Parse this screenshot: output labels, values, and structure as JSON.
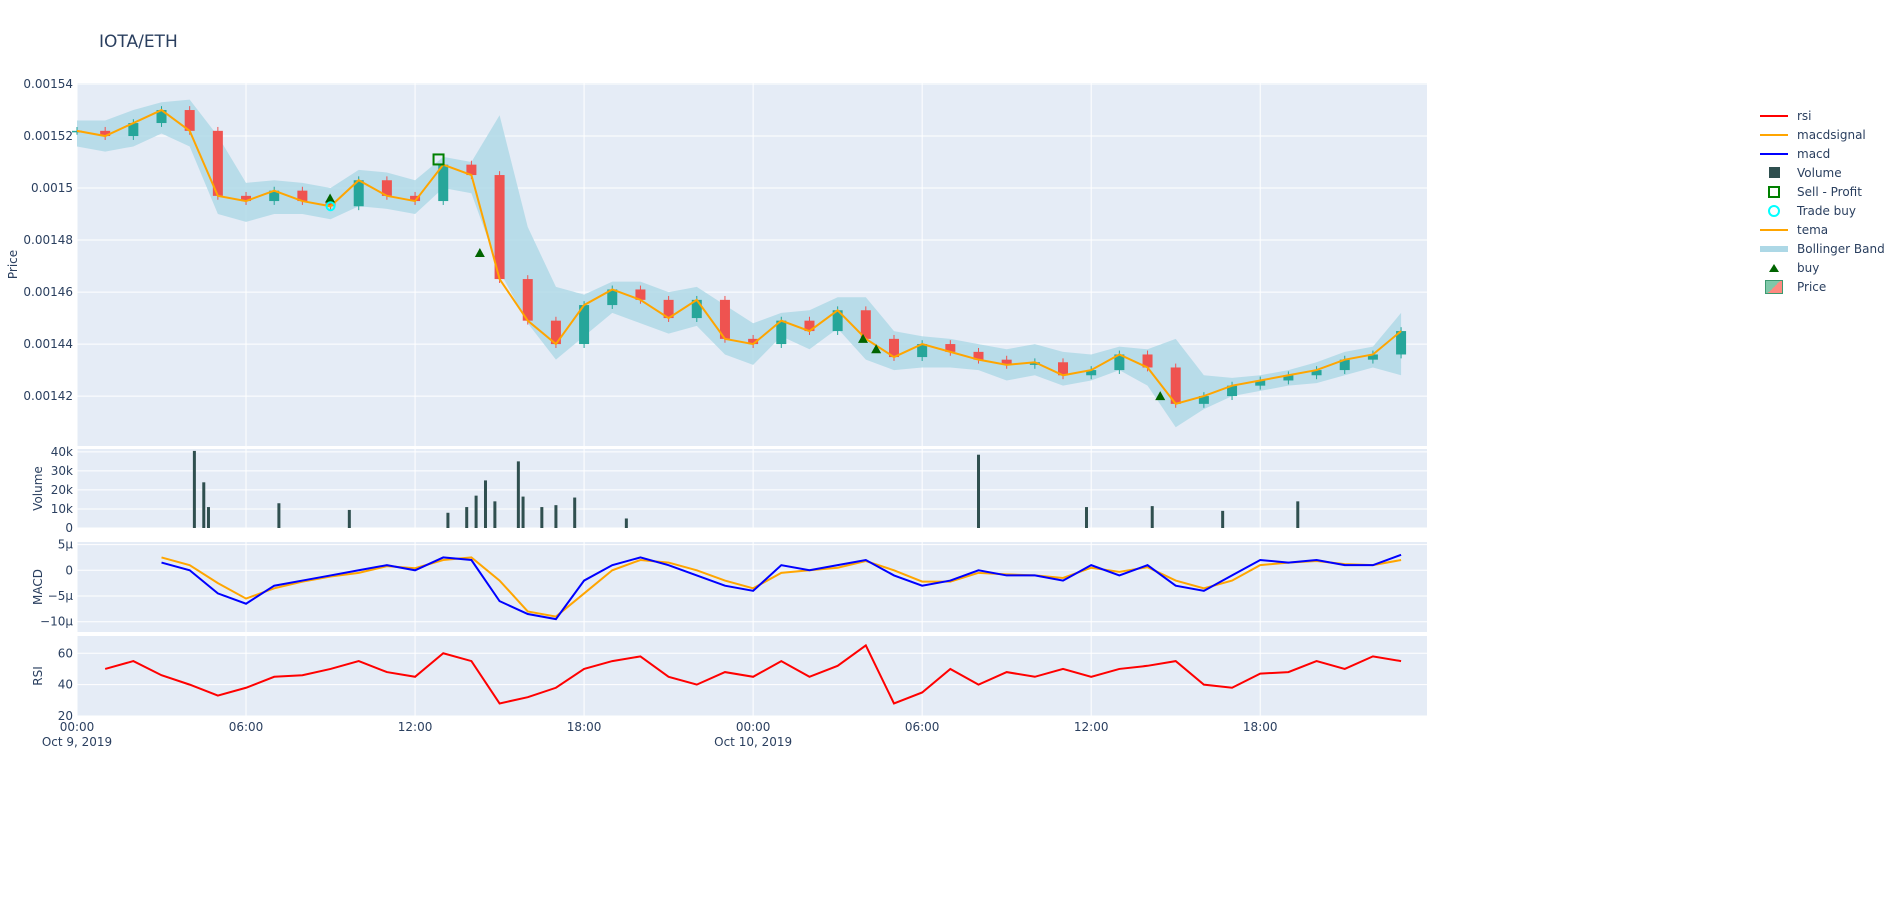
{
  "title": "IOTA/ETH",
  "colors": {
    "rsi": "#ff0000",
    "macdsignal": "#ffa500",
    "macd": "#0000ff",
    "volume": "#2f4f4f",
    "sell": "#008000",
    "tradebuy": "#00ffff",
    "tema": "#ffa500",
    "band": "#add8e6",
    "buy": "#006400",
    "up": "#26a69a",
    "down": "#ef5350",
    "plot_bg": "#e5ecf6"
  },
  "legend": [
    "rsi",
    "macdsignal",
    "macd",
    "Volume",
    "Sell - Profit",
    "Trade buy",
    "tema",
    "Bollinger Band",
    "buy",
    "Price"
  ],
  "chart_data": {
    "type": "candlestick",
    "x_ticks": [
      {
        "t": 0,
        "label": "00:00",
        "sub": "Oct 9, 2019"
      },
      {
        "t": 6,
        "label": "06:00"
      },
      {
        "t": 12,
        "label": "12:00"
      },
      {
        "t": 18,
        "label": "18:00"
      },
      {
        "t": 24,
        "label": "00:00",
        "sub": "Oct 10, 2019"
      },
      {
        "t": 30,
        "label": "06:00"
      },
      {
        "t": 36,
        "label": "12:00"
      },
      {
        "t": 42,
        "label": "18:00"
      }
    ],
    "x_range": [
      "2019-10-09 00:00",
      "2019-10-10 23:55"
    ],
    "time": [
      "2019-10-09 00:00",
      "01:00",
      "02:00",
      "03:00",
      "04:00",
      "05:00",
      "06:00",
      "07:00",
      "08:00",
      "09:00",
      "10:00",
      "11:00",
      "12:00",
      "13:00",
      "14:00",
      "15:00",
      "16:00",
      "17:00",
      "18:00",
      "19:00",
      "20:00",
      "21:00",
      "22:00",
      "23:00",
      "2019-10-10 00:00",
      "01:00",
      "02:00",
      "03:00",
      "04:00",
      "05:00",
      "06:00",
      "07:00",
      "08:00",
      "09:00",
      "10:00",
      "11:00",
      "12:00",
      "13:00",
      "14:00",
      "15:00",
      "16:00",
      "17:00",
      "18:00",
      "19:00",
      "20:00",
      "21:00",
      "22:00",
      "23:00"
    ],
    "price": {
      "ylabel": "Price",
      "ylim": [
        0.0014008,
        0.0015404
      ],
      "ticks": [
        "0.00142",
        "0.00144",
        "0.00146",
        "0.00148",
        "0.0015",
        "0.00152",
        "0.00154"
      ],
      "close": [
        0.001522,
        0.00152,
        0.001525,
        0.00153,
        0.001522,
        0.001497,
        0.001495,
        0.001499,
        0.001495,
        0.001493,
        0.001503,
        0.001497,
        0.001495,
        0.001509,
        0.001505,
        0.001465,
        0.001449,
        0.00144,
        0.001455,
        0.001461,
        0.001457,
        0.00145,
        0.001457,
        0.001442,
        0.00144,
        0.001449,
        0.001445,
        0.001453,
        0.001442,
        0.001435,
        0.00144,
        0.001437,
        0.001434,
        0.001432,
        0.001433,
        0.001428,
        0.00143,
        0.001436,
        0.001431,
        0.001417,
        0.00142,
        0.001424,
        0.001426,
        0.001428,
        0.00143,
        0.001434,
        0.001436,
        0.001445
      ],
      "bb_upper": [
        0.001526,
        0.001526,
        0.00153,
        0.001533,
        0.001534,
        0.00152,
        0.001502,
        0.001503,
        0.001502,
        0.0015,
        0.001507,
        0.001506,
        0.001503,
        0.001512,
        0.00151,
        0.001528,
        0.001485,
        0.001462,
        0.001459,
        0.001464,
        0.001464,
        0.00146,
        0.001462,
        0.001455,
        0.001448,
        0.001452,
        0.001453,
        0.001458,
        0.001458,
        0.001445,
        0.001443,
        0.001442,
        0.00144,
        0.001438,
        0.00144,
        0.001437,
        0.001436,
        0.001439,
        0.001438,
        0.001442,
        0.001428,
        0.001427,
        0.001428,
        0.00143,
        0.001433,
        0.001437,
        0.001439,
        0.001452
      ],
      "bb_lower": [
        0.001516,
        0.001514,
        0.001516,
        0.001521,
        0.001516,
        0.00149,
        0.001487,
        0.00149,
        0.00149,
        0.001488,
        0.001493,
        0.001492,
        0.00149,
        0.0015,
        0.001498,
        0.001468,
        0.001448,
        0.001434,
        0.001443,
        0.001452,
        0.001448,
        0.001444,
        0.001447,
        0.001436,
        0.001432,
        0.001443,
        0.001438,
        0.001446,
        0.001434,
        0.00143,
        0.001431,
        0.001431,
        0.00143,
        0.001426,
        0.001428,
        0.001424,
        0.001426,
        0.00143,
        0.001424,
        0.001408,
        0.001415,
        0.00142,
        0.001422,
        0.001424,
        0.001425,
        0.001428,
        0.001431,
        0.001428
      ],
      "buy": [
        {
          "t": "2019-10-09 08:59",
          "price": 0.001496
        },
        {
          "t": "2019-10-09 14:18",
          "price": 0.001475
        },
        {
          "t": "2019-10-10 03:54",
          "price": 0.001442
        },
        {
          "t": "2019-10-10 04:22",
          "price": 0.001438
        },
        {
          "t": "2019-10-10 14:27",
          "price": 0.00142
        }
      ],
      "trade_buy": [
        {
          "t": "2019-10-09 09:00",
          "price": 0.001493
        }
      ],
      "sell_profit": [
        {
          "t": "2019-10-09 12:50",
          "price": 0.001511
        }
      ]
    },
    "volume": {
      "ylabel": "Volume",
      "ylim": [
        0,
        41500
      ],
      "ticks": [
        "0",
        "10k",
        "20k",
        "30k",
        "40k"
      ],
      "bars": [
        {
          "t": "2019-10-09 04:10",
          "v": 40500
        },
        {
          "t": "2019-10-09 04:30",
          "v": 24000
        },
        {
          "t": "2019-10-09 04:40",
          "v": 11000
        },
        {
          "t": "2019-10-09 07:10",
          "v": 13000
        },
        {
          "t": "2019-10-09 09:40",
          "v": 9500
        },
        {
          "t": "2019-10-09 13:10",
          "v": 8000
        },
        {
          "t": "2019-10-09 13:50",
          "v": 11000
        },
        {
          "t": "2019-10-09 14:10",
          "v": 17000
        },
        {
          "t": "2019-10-09 14:30",
          "v": 25000
        },
        {
          "t": "2019-10-09 14:50",
          "v": 14000
        },
        {
          "t": "2019-10-09 15:40",
          "v": 35000
        },
        {
          "t": "2019-10-09 15:50",
          "v": 16500
        },
        {
          "t": "2019-10-09 16:30",
          "v": 11000
        },
        {
          "t": "2019-10-09 17:00",
          "v": 12000
        },
        {
          "t": "2019-10-09 17:40",
          "v": 16000
        },
        {
          "t": "2019-10-09 19:30",
          "v": 5000
        },
        {
          "t": "2019-10-10 08:00",
          "v": 38500
        },
        {
          "t": "2019-10-10 11:50",
          "v": 11000
        },
        {
          "t": "2019-10-10 14:10",
          "v": 11500
        },
        {
          "t": "2019-10-10 16:40",
          "v": 9000
        },
        {
          "t": "2019-10-10 19:20",
          "v": 14000
        }
      ]
    },
    "macd": {
      "ylabel": "MACD",
      "ylim": [
        -12,
        5.5
      ],
      "ticks": [
        "−10µ",
        "−5µ",
        "0",
        "5µ"
      ],
      "macd": [
        null,
        null,
        null,
        1.5,
        0,
        -4.5,
        -6.5,
        -3,
        -2,
        -1,
        0,
        1,
        0,
        2.5,
        2,
        -6,
        -8.5,
        -9.5,
        -2,
        1,
        2.5,
        1,
        -1,
        -3,
        -4,
        1,
        0,
        1,
        2,
        -1,
        -3,
        -2,
        0,
        -1,
        -1,
        -2,
        1,
        -1,
        1,
        -3,
        -4,
        -1,
        2,
        1.5,
        2,
        1,
        1,
        3
      ],
      "macdsignal": [
        null,
        null,
        null,
        2.5,
        1,
        -2.5,
        -5.5,
        -3.5,
        -2.2,
        -1.2,
        -0.5,
        0.8,
        0.4,
        2,
        2.5,
        -2,
        -8,
        -9,
        -4.5,
        0,
        2,
        1.5,
        0,
        -2,
        -3.5,
        -0.5,
        0,
        0.5,
        1.8,
        0,
        -2.2,
        -2.2,
        -0.5,
        -0.8,
        -1,
        -1.5,
        0.5,
        -0.3,
        0.6,
        -2,
        -3.5,
        -2,
        1,
        1.5,
        1.8,
        1.2,
        1,
        2
      ]
    },
    "rsi": {
      "ylabel": "RSI",
      "ylim": [
        20,
        71
      ],
      "ticks": [
        "20",
        "40",
        "60"
      ],
      "values": [
        null,
        50,
        55,
        46,
        40,
        33,
        38,
        45,
        46,
        50,
        55,
        48,
        45,
        60,
        55,
        28,
        32,
        38,
        50,
        55,
        58,
        45,
        40,
        48,
        45,
        55,
        45,
        52,
        65,
        28,
        35,
        50,
        40,
        48,
        45,
        50,
        45,
        50,
        52,
        55,
        40,
        38,
        47,
        48,
        55,
        50,
        58,
        55
      ]
    }
  }
}
